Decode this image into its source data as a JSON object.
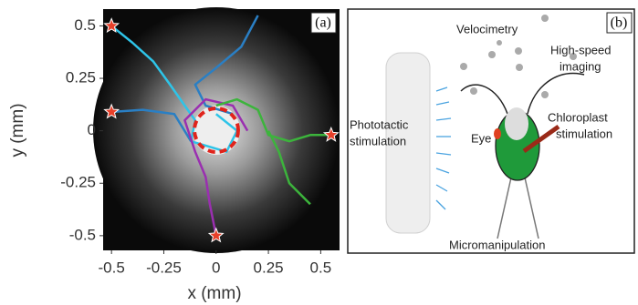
{
  "panel_a": {
    "label": "(a)",
    "xlabel": "x (mm)",
    "ylabel": "y (mm)",
    "xlim": [
      -0.54,
      0.59
    ],
    "ylim": [
      -0.57,
      0.58
    ],
    "xticks": [
      -0.5,
      -0.25,
      0,
      0.25,
      0.5
    ],
    "yticks": [
      0.5,
      0.25,
      0,
      -0.25,
      -0.5
    ],
    "start_points": {
      "color": "#e8402a",
      "x": [
        -0.5,
        -0.5,
        0.55,
        0
      ],
      "y": [
        0.5,
        0.09,
        -0.02,
        -0.5
      ]
    },
    "trajectories": [
      {
        "color": "#2ec4e8",
        "x": [
          -0.5,
          -0.4,
          -0.3,
          -0.22,
          -0.15,
          -0.1,
          -0.12,
          0.05,
          0.1,
          0
        ],
        "y": [
          0.5,
          0.42,
          0.33,
          0.22,
          0.12,
          0.05,
          -0.05,
          -0.1,
          0,
          0.08
        ]
      },
      {
        "color": "#2a7fc4",
        "x": [
          0.2,
          0.12,
          0,
          -0.1,
          -0.05,
          0.08
        ],
        "y": [
          0.55,
          0.4,
          0.3,
          0.22,
          0.12,
          0.08
        ]
      },
      {
        "color": "#2a7fc4",
        "x": [
          -0.5,
          -0.35,
          -0.2,
          -0.12
        ],
        "y": [
          0.09,
          0.1,
          0.08,
          -0.05
        ]
      },
      {
        "color": "#9a2fb0",
        "x": [
          0,
          -0.03,
          -0.05,
          -0.1,
          -0.15,
          -0.05,
          0.08,
          0.15
        ],
        "y": [
          -0.5,
          -0.35,
          -0.22,
          -0.1,
          0.05,
          0.15,
          0.12,
          0
        ]
      },
      {
        "color": "#3cb43c",
        "x": [
          0.55,
          0.45,
          0.35,
          0.25,
          0.2,
          0.1,
          0
        ],
        "y": [
          -0.02,
          -0.02,
          -0.05,
          -0.02,
          0.1,
          0.15,
          0.12
        ]
      },
      {
        "color": "#3cb43c",
        "x": [
          0.45,
          0.35,
          0.3,
          0.25
        ],
        "y": [
          -0.35,
          -0.25,
          -0.1,
          0
        ]
      }
    ]
  },
  "panel_b": {
    "label": "(b)",
    "velocimetry": "Velocimetry",
    "imaging": [
      "High-speed",
      "imaging"
    ],
    "phototactic": [
      "Phototactic",
      "stimulation"
    ],
    "eye": "Eye",
    "chloroplast": [
      "Chloroplast",
      "stimulation"
    ],
    "micromanipulation": "Micromanipulation"
  }
}
